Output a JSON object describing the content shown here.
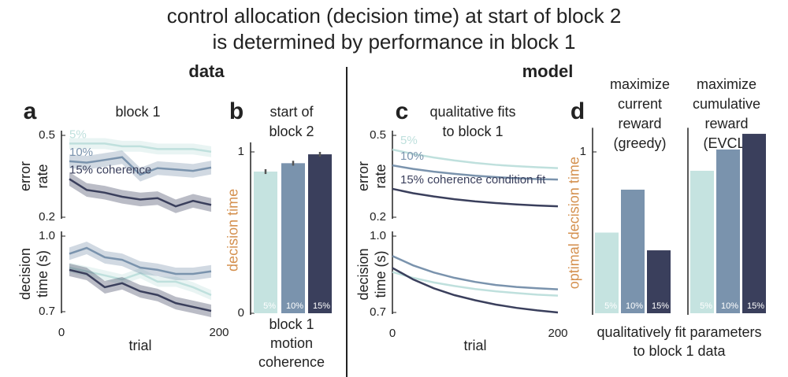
{
  "header": {
    "title_lines": [
      "control allocation (decision time) at start of block 2",
      "is determined by performance in block 1"
    ],
    "sections": [
      "data",
      "model"
    ]
  },
  "chart_data": [
    {
      "type": "line",
      "label": "a",
      "title": [
        "block 1"
      ],
      "ylabel": [
        "error",
        "rate"
      ],
      "x": [
        10,
        32,
        55,
        77,
        100,
        122,
        145,
        167,
        190
      ],
      "xlim": [
        0,
        200
      ],
      "ylim": [
        0.2,
        0.5
      ],
      "yticks": [
        0.5,
        0.2
      ],
      "series": [
        {
          "name": "5%",
          "color": "#bfe0dd",
          "values": [
            0.47,
            0.47,
            0.47,
            0.46,
            0.46,
            0.45,
            0.45,
            0.45,
            0.44
          ],
          "errors": [
            0.02,
            0.02,
            0.02,
            0.02,
            0.02,
            0.02,
            0.02,
            0.02,
            0.02
          ]
        },
        {
          "name": "10%",
          "color": "#7a93ad",
          "values": [
            0.405,
            0.4,
            0.41,
            0.42,
            0.356,
            0.38,
            0.375,
            0.37,
            0.382
          ],
          "errors": [
            0.025,
            0.025,
            0.025,
            0.025,
            0.025,
            0.025,
            0.025,
            0.025,
            0.025
          ]
        },
        {
          "name": "15% coherence",
          "color": "#3a3f5c",
          "values": [
            0.34,
            0.3,
            0.29,
            0.275,
            0.265,
            0.27,
            0.24,
            0.26,
            0.245
          ],
          "errors": [
            0.025,
            0.025,
            0.025,
            0.025,
            0.025,
            0.025,
            0.025,
            0.025,
            0.025
          ]
        }
      ]
    },
    {
      "type": "line",
      "ylabel": [
        "decision",
        "time (s)"
      ],
      "x": [
        10,
        32,
        55,
        77,
        100,
        122,
        145,
        167,
        190
      ],
      "xlim": [
        0,
        200
      ],
      "xticks": [
        0,
        200
      ],
      "xlabel": [
        "trial"
      ],
      "ylim": [
        0.7,
        1.0
      ],
      "yticks": [
        {
          "value": 1.0,
          "label": "1.0"
        },
        0.7
      ],
      "series": [
        {
          "name": "5%",
          "color": "#bfe0dd",
          "values": [
            0.875,
            0.86,
            0.844,
            0.828,
            0.853,
            0.819,
            0.819,
            0.797,
            0.766
          ],
          "errors": [
            0.02,
            0.02,
            0.02,
            0.02,
            0.02,
            0.02,
            0.02,
            0.02,
            0.02
          ]
        },
        {
          "name": "10%",
          "color": "#7a93ad",
          "values": [
            0.93,
            0.953,
            0.916,
            0.906,
            0.875,
            0.866,
            0.85,
            0.85,
            0.86
          ],
          "errors": [
            0.025,
            0.025,
            0.025,
            0.025,
            0.025,
            0.025,
            0.025,
            0.025,
            0.025
          ]
        },
        {
          "name": "15%",
          "color": "#3a3f5c",
          "values": [
            0.866,
            0.85,
            0.797,
            0.813,
            0.781,
            0.766,
            0.734,
            0.719,
            0.703
          ],
          "errors": [
            0.025,
            0.025,
            0.025,
            0.025,
            0.025,
            0.025,
            0.025,
            0.025,
            0.025
          ]
        }
      ]
    },
    {
      "type": "bar",
      "label": "b",
      "title": [
        "start of",
        "block 2"
      ],
      "ylabel": [
        "decision time"
      ],
      "xlabel": [
        "block 1",
        "motion",
        "coherence"
      ],
      "categories": [
        "5%",
        "10%",
        "15%"
      ],
      "values": [
        0.878,
        0.93,
        0.985
      ],
      "errors": [
        0.015,
        0.015,
        0.015
      ],
      "colors": [
        "#c5e3e0",
        "#7a93ad",
        "#3a3f5c"
      ],
      "ylim": [
        0,
        1.03
      ],
      "yticks": [
        1,
        0
      ]
    },
    {
      "type": "line",
      "label": "c",
      "title": [
        "qualitative fits",
        "to block 1"
      ],
      "ylabel": [
        "error",
        "rate"
      ],
      "x": [
        0,
        25,
        50,
        75,
        100,
        125,
        150,
        175,
        200
      ],
      "xlim": [
        0,
        200
      ],
      "ylim": [
        0.2,
        0.5
      ],
      "yticks": [
        0.5,
        0.2
      ],
      "series": [
        {
          "name": "5%",
          "color": "#bfe0dd",
          "values": [
            0.448,
            0.432,
            0.419,
            0.408,
            0.399,
            0.392,
            0.387,
            0.383,
            0.38
          ]
        },
        {
          "name": "10%",
          "color": "#7a93ad",
          "values": [
            0.39,
            0.377,
            0.367,
            0.359,
            0.352,
            0.347,
            0.343,
            0.34,
            0.338
          ]
        },
        {
          "name": "15% coherence condition fit",
          "color": "#3a3f5c",
          "values": [
            0.304,
            0.288,
            0.276,
            0.266,
            0.258,
            0.252,
            0.247,
            0.243,
            0.24
          ]
        }
      ]
    },
    {
      "type": "line",
      "ylabel": [
        "decision",
        "time (s)"
      ],
      "x": [
        0,
        25,
        50,
        75,
        100,
        125,
        150,
        175,
        200
      ],
      "xlim": [
        0,
        200
      ],
      "xticks": [
        0,
        200
      ],
      "xlabel": [
        "trial"
      ],
      "ylim": [
        0.7,
        1.0
      ],
      "yticks": [
        {
          "value": 1.0,
          "label": "1.0"
        },
        0.7
      ],
      "series": [
        {
          "name": "5%",
          "color": "#bfe0dd",
          "values": [
            0.859,
            0.836,
            0.818,
            0.804,
            0.792,
            0.783,
            0.776,
            0.77,
            0.766
          ]
        },
        {
          "name": "10%",
          "color": "#7a93ad",
          "values": [
            0.922,
            0.885,
            0.857,
            0.836,
            0.82,
            0.808,
            0.8,
            0.795,
            0.791
          ]
        },
        {
          "name": "15%",
          "color": "#3a3f5c",
          "values": [
            0.875,
            0.83,
            0.795,
            0.768,
            0.748,
            0.731,
            0.718,
            0.708,
            0.7
          ]
        }
      ]
    },
    {
      "type": "bar",
      "label": "d",
      "title": [
        "maximize",
        "current",
        "reward",
        "(greedy)"
      ],
      "ylabel": [
        "optimal decision time"
      ],
      "categories": [
        "5%",
        "10%",
        "15%"
      ],
      "values": [
        0.5,
        0.766,
        0.39
      ],
      "colors": [
        "#c5e3e0",
        "#7a93ad",
        "#3a3f5c"
      ],
      "ylim": [
        0,
        1.12
      ],
      "yticks": [
        1
      ]
    },
    {
      "type": "bar",
      "title": [
        "maximize",
        "cumulative",
        "reward",
        "(EVCL)"
      ],
      "xlabel": [
        "qualitatively fit parameters",
        "to block 1 data"
      ],
      "categories": [
        "5%",
        "10%",
        "15%"
      ],
      "values": [
        0.883,
        1.015,
        1.112
      ],
      "colors": [
        "#c5e3e0",
        "#7a93ad",
        "#3a3f5c"
      ],
      "ylim": [
        0,
        1.12
      ]
    }
  ]
}
